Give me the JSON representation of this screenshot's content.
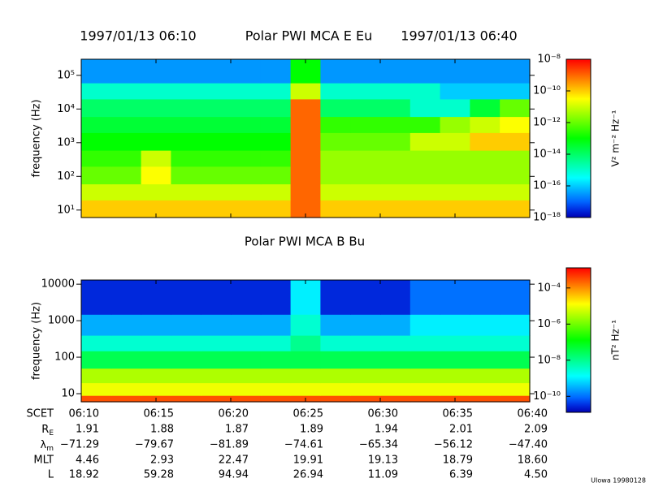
{
  "chart_data": [
    {
      "type": "heatmap",
      "start_time": "1997/01/13 06:10",
      "title": "Polar PWI MCA E Eu",
      "end_time": "1997/01/13 06:40",
      "ylabel": "frequency (Hz)",
      "log_y": true,
      "ylim": [
        6,
        300000
      ],
      "yticks": [
        {
          "value": 10,
          "label": "10¹"
        },
        {
          "value": 100,
          "label": "10²"
        },
        {
          "value": 1000,
          "label": "10³"
        },
        {
          "value": 10000,
          "label": "10⁴"
        },
        {
          "value": 100000,
          "label": "10⁵"
        }
      ],
      "y_bins": [
        6,
        20,
        60,
        200,
        600,
        2000,
        6000,
        20000,
        60000,
        300000
      ],
      "values": [
        [
          1e-10,
          1e-10,
          1e-10,
          1e-10,
          1e-10,
          1e-10,
          1e-10,
          1e-09,
          1e-10,
          1e-10,
          1e-10,
          1e-10,
          1e-10,
          1e-10,
          1e-10
        ],
        [
          1e-11,
          1e-11,
          1e-11,
          1e-11,
          1e-11,
          1e-11,
          1e-11,
          1e-09,
          1e-11,
          1e-11,
          1e-11,
          1e-11,
          1e-11,
          1e-11,
          1e-11
        ],
        [
          1e-12,
          1e-12,
          3e-11,
          1e-12,
          1e-12,
          1e-12,
          1e-12,
          1e-09,
          3e-12,
          3e-12,
          3e-12,
          3e-12,
          3e-12,
          3e-12,
          3e-12
        ],
        [
          3e-13,
          3e-13,
          1e-11,
          3e-13,
          3e-13,
          3e-13,
          3e-13,
          1e-09,
          3e-12,
          3e-12,
          3e-12,
          3e-12,
          3e-12,
          3e-12,
          3e-12
        ],
        [
          1e-13,
          1e-13,
          1e-13,
          1e-13,
          1e-13,
          1e-13,
          1e-13,
          1e-09,
          1e-12,
          1e-12,
          1e-12,
          1e-11,
          1e-11,
          1e-10,
          1e-10
        ],
        [
          3e-14,
          3e-14,
          3e-14,
          3e-14,
          3e-14,
          3e-14,
          3e-14,
          1e-09,
          3e-13,
          3e-13,
          3e-13,
          3e-13,
          3e-12,
          1e-11,
          3e-11
        ],
        [
          1e-14,
          1e-14,
          1e-14,
          1e-14,
          1e-14,
          1e-14,
          1e-14,
          1e-09,
          1e-14,
          1e-14,
          1e-14,
          1e-15,
          1e-15,
          3e-14,
          1e-12
        ],
        [
          1e-15,
          1e-15,
          1e-15,
          1e-15,
          1e-15,
          1e-15,
          1e-15,
          1e-11,
          1e-15,
          1e-15,
          1e-15,
          1e-15,
          1e-16,
          1e-16,
          1e-16
        ],
        [
          3e-17,
          3e-17,
          3e-17,
          3e-17,
          3e-17,
          3e-17,
          3e-17,
          1e-13,
          3e-17,
          3e-17,
          3e-17,
          3e-17,
          3e-17,
          3e-17,
          3e-17
        ]
      ],
      "colorbar": {
        "label": "V² m⁻² Hz⁻¹",
        "log": true,
        "lim": [
          1e-18,
          1e-08
        ],
        "ticks": [
          {
            "value": 1e-18,
            "label": "10⁻¹⁸"
          },
          {
            "value": 1e-16,
            "label": "10⁻¹⁶"
          },
          {
            "value": 1e-14,
            "label": "10⁻¹⁴"
          },
          {
            "value": 1e-12,
            "label": "10⁻¹²"
          },
          {
            "value": 1e-10,
            "label": "10⁻¹⁰"
          },
          {
            "value": 1e-08,
            "label": "10⁻⁸"
          }
        ]
      }
    },
    {
      "type": "heatmap",
      "title": "Polar PWI MCA B Bu",
      "ylabel": "frequency (Hz)",
      "log_y": true,
      "ylim": [
        6,
        13000
      ],
      "yticks": [
        10,
        100,
        1000,
        10000
      ],
      "y_bins": [
        6,
        9,
        20,
        50,
        150,
        400,
        1500,
        13000
      ],
      "values": [
        [
          0.0003,
          0.0003,
          0.0003,
          0.0003,
          0.0003,
          0.0003,
          0.0003,
          0.0003,
          0.0003,
          0.0003,
          0.0003,
          0.0003,
          0.0003,
          0.0003,
          0.0003
        ],
        [
          1e-05,
          1e-05,
          1e-05,
          1e-05,
          1e-05,
          1e-05,
          1e-05,
          1e-05,
          1e-05,
          1e-05,
          1e-05,
          1e-05,
          1e-05,
          1e-05,
          1e-05
        ],
        [
          3e-06,
          3e-06,
          3e-06,
          3e-06,
          3e-06,
          3e-06,
          3e-06,
          3e-06,
          3e-06,
          3e-06,
          3e-06,
          3e-06,
          3e-06,
          3e-06,
          3e-06
        ],
        [
          3e-08,
          3e-08,
          3e-08,
          3e-08,
          3e-08,
          3e-08,
          3e-08,
          3e-08,
          3e-08,
          3e-08,
          3e-08,
          3e-08,
          3e-08,
          3e-08,
          3e-08
        ],
        [
          3e-09,
          3e-09,
          3e-09,
          3e-09,
          3e-09,
          3e-09,
          3e-09,
          1e-08,
          3e-09,
          3e-09,
          3e-09,
          3e-09,
          3e-09,
          3e-09,
          3e-09
        ],
        [
          3e-10,
          3e-10,
          3e-10,
          3e-10,
          3e-10,
          3e-10,
          3e-10,
          3e-09,
          3e-10,
          3e-10,
          3e-10,
          1e-09,
          1e-09,
          1e-09,
          1e-09
        ],
        [
          3e-11,
          3e-11,
          3e-11,
          3e-11,
          3e-11,
          3e-11,
          3e-11,
          1e-09,
          3e-11,
          3e-11,
          3e-11,
          1e-10,
          1e-10,
          1e-10,
          1e-10
        ]
      ],
      "colorbar": {
        "label": "nT² Hz⁻¹",
        "log": true,
        "lim": [
          1.3e-11,
          0.0013
        ],
        "ticks": [
          {
            "value": 1e-10,
            "label": "10⁻¹⁰"
          },
          {
            "value": 1e-08,
            "label": "10⁻⁸"
          },
          {
            "value": 1e-06,
            "label": "10⁻⁶"
          },
          {
            "value": 0.0001,
            "label": "10⁻⁴"
          }
        ]
      }
    }
  ],
  "ephemeris": [
    {
      "label": "SCET",
      "values": [
        "06:10",
        "06:15",
        "06:20",
        "06:25",
        "06:30",
        "06:35",
        "06:40"
      ]
    },
    {
      "label": "R",
      "subscript": "E",
      "values": [
        "1.91",
        "1.88",
        "1.87",
        "1.89",
        "1.94",
        "2.01",
        "2.09"
      ]
    },
    {
      "label": "λ",
      "subscript": "m",
      "values": [
        "−71.29",
        "−79.67",
        "−81.89",
        "−74.61",
        "−65.34",
        "−56.12",
        "−47.40"
      ]
    },
    {
      "label": "MLT",
      "values": [
        "4.46",
        "2.93",
        "22.47",
        "19.91",
        "19.13",
        "18.79",
        "18.60"
      ]
    },
    {
      "label": "L",
      "values": [
        "18.92",
        "59.28",
        "94.94",
        "26.94",
        "11.09",
        "6.39",
        "4.50"
      ]
    }
  ],
  "footer": "UIowa 19980128"
}
